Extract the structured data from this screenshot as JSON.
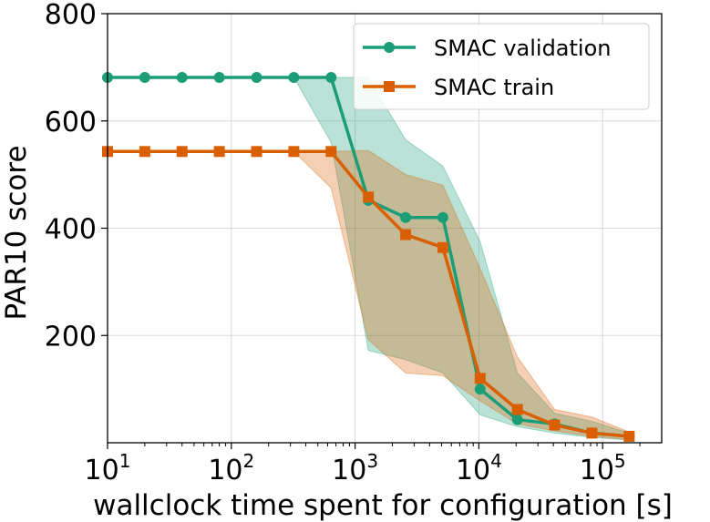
{
  "chart_data": {
    "type": "line",
    "xlabel": "wallclock time spent for configuration [s]",
    "ylabel": "PAR10 score",
    "xscale": "log",
    "xlim": [
      10,
      300000
    ],
    "ylim": [
      0,
      800
    ],
    "xticks": [
      {
        "value": 10,
        "base": "10",
        "exp": "1"
      },
      {
        "value": 100,
        "base": "10",
        "exp": "2"
      },
      {
        "value": 1000,
        "base": "10",
        "exp": "3"
      },
      {
        "value": 10000,
        "base": "10",
        "exp": "4"
      },
      {
        "value": 100000,
        "base": "10",
        "exp": "5"
      }
    ],
    "yticks": [
      {
        "value": 200,
        "label": "200"
      },
      {
        "value": 400,
        "label": "400"
      },
      {
        "value": 600,
        "label": "600"
      },
      {
        "value": 800,
        "label": "800"
      }
    ],
    "grid": true,
    "legend_position": "top-right",
    "x": [
      10,
      20,
      40,
      80,
      160,
      320,
      640,
      1280,
      2560,
      5120,
      10240,
      20480,
      40960,
      81920,
      163840
    ],
    "series": [
      {
        "name": "SMAC validation",
        "color": "#1b9e77",
        "marker": "circle",
        "values": [
          681,
          681,
          681,
          681,
          681,
          681,
          681,
          452,
          420,
          420,
          100,
          43,
          35,
          18,
          12
        ],
        "band_lower": [
          681,
          681,
          681,
          681,
          681,
          681,
          560,
          172,
          155,
          130,
          52,
          30,
          18,
          10,
          5
        ],
        "band_upper": [
          681,
          681,
          681,
          681,
          681,
          681,
          681,
          681,
          565,
          516,
          375,
          130,
          55,
          40,
          18
        ]
      },
      {
        "name": "SMAC train",
        "color": "#d95f02",
        "marker": "square",
        "values": [
          543,
          543,
          543,
          543,
          543,
          543,
          543,
          458,
          388,
          364,
          120,
          62,
          33,
          18,
          12
        ],
        "band_lower": [
          543,
          543,
          543,
          543,
          543,
          543,
          475,
          192,
          130,
          125,
          78,
          35,
          22,
          12,
          6
        ],
        "band_upper": [
          543,
          543,
          543,
          543,
          543,
          543,
          543,
          545,
          500,
          480,
          325,
          160,
          62,
          48,
          20
        ]
      }
    ]
  }
}
